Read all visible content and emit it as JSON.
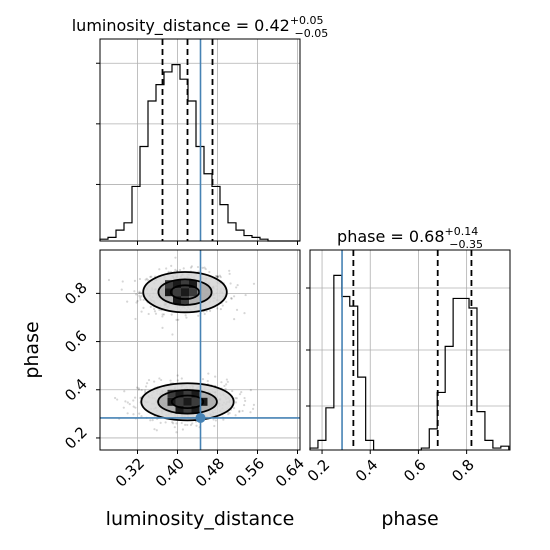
{
  "chart_data": [
    {
      "type": "histogram",
      "title": {
        "text": "luminosity_distance = 0.42",
        "sup": "+0.05",
        "sub": "−0.05"
      },
      "xlim": [
        0.245,
        0.645
      ],
      "bin_edges": [
        0.245,
        0.261,
        0.277,
        0.293,
        0.309,
        0.325,
        0.341,
        0.357,
        0.373,
        0.389,
        0.405,
        0.421,
        0.437,
        0.453,
        0.469,
        0.485,
        0.501,
        0.517,
        0.533,
        0.549,
        0.565,
        0.581,
        0.597,
        0.613,
        0.629,
        0.645
      ],
      "counts": [
        0.01,
        0.02,
        0.06,
        0.1,
        0.3,
        0.52,
        0.77,
        0.86,
        0.93,
        0.97,
        0.89,
        0.77,
        0.52,
        0.37,
        0.3,
        0.2,
        0.1,
        0.06,
        0.03,
        0.02,
        0.01,
        0,
        0,
        0,
        0
      ],
      "quantiles": [
        0.37,
        0.42,
        0.47
      ],
      "truth": 0.446,
      "grid": true
    },
    {
      "type": "histogram",
      "title": {
        "text": "phase = 0.68",
        "sup": "+0.14",
        "sub": "−0.35"
      },
      "xlim": [
        0.15,
        0.98
      ],
      "bin_edges": [
        0.15,
        0.183,
        0.216,
        0.249,
        0.282,
        0.315,
        0.348,
        0.381,
        0.414,
        0.447,
        0.48,
        0.513,
        0.546,
        0.579,
        0.612,
        0.645,
        0.678,
        0.711,
        0.744,
        0.777,
        0.81,
        0.843,
        0.876,
        0.909,
        0.942,
        0.975
      ],
      "counts": [
        0.01,
        0.05,
        0.22,
        0.91,
        0.8,
        0.75,
        0.38,
        0.05,
        0,
        0,
        0,
        0,
        0,
        0,
        0.01,
        0.11,
        0.3,
        0.54,
        0.79,
        0.79,
        0.74,
        0.2,
        0.05,
        0.01,
        0.02
      ],
      "quantiles": [
        0.33,
        0.68,
        0.82
      ],
      "truth": 0.283,
      "xticks": [
        0.2,
        0.4,
        0.6,
        0.8
      ],
      "xlabel": "phase",
      "grid": true
    },
    {
      "type": "scatter-density",
      "xlim": [
        0.245,
        0.645
      ],
      "ylim": [
        0.15,
        0.98
      ],
      "xticks": [
        0.32,
        0.4,
        0.48,
        0.56,
        0.64
      ],
      "yticks": [
        0.2,
        0.4,
        0.6,
        0.8
      ],
      "xlabel": "luminosity_distance",
      "ylabel": "phase",
      "modes": [
        {
          "x": 0.415,
          "y": 0.805,
          "sx": 0.038,
          "sy": 0.038
        },
        {
          "x": 0.42,
          "y": 0.35,
          "sx": 0.042,
          "sy": 0.035
        }
      ],
      "contour_levels": [
        0.39,
        0.86,
        1.0
      ],
      "truth": {
        "x": 0.446,
        "y": 0.283
      },
      "grid": true
    }
  ],
  "colors": {
    "histogram": "#000000",
    "quantile": "#000000",
    "truth": "#4682b4",
    "grid": "#b0b0b0",
    "density": "#000000"
  }
}
